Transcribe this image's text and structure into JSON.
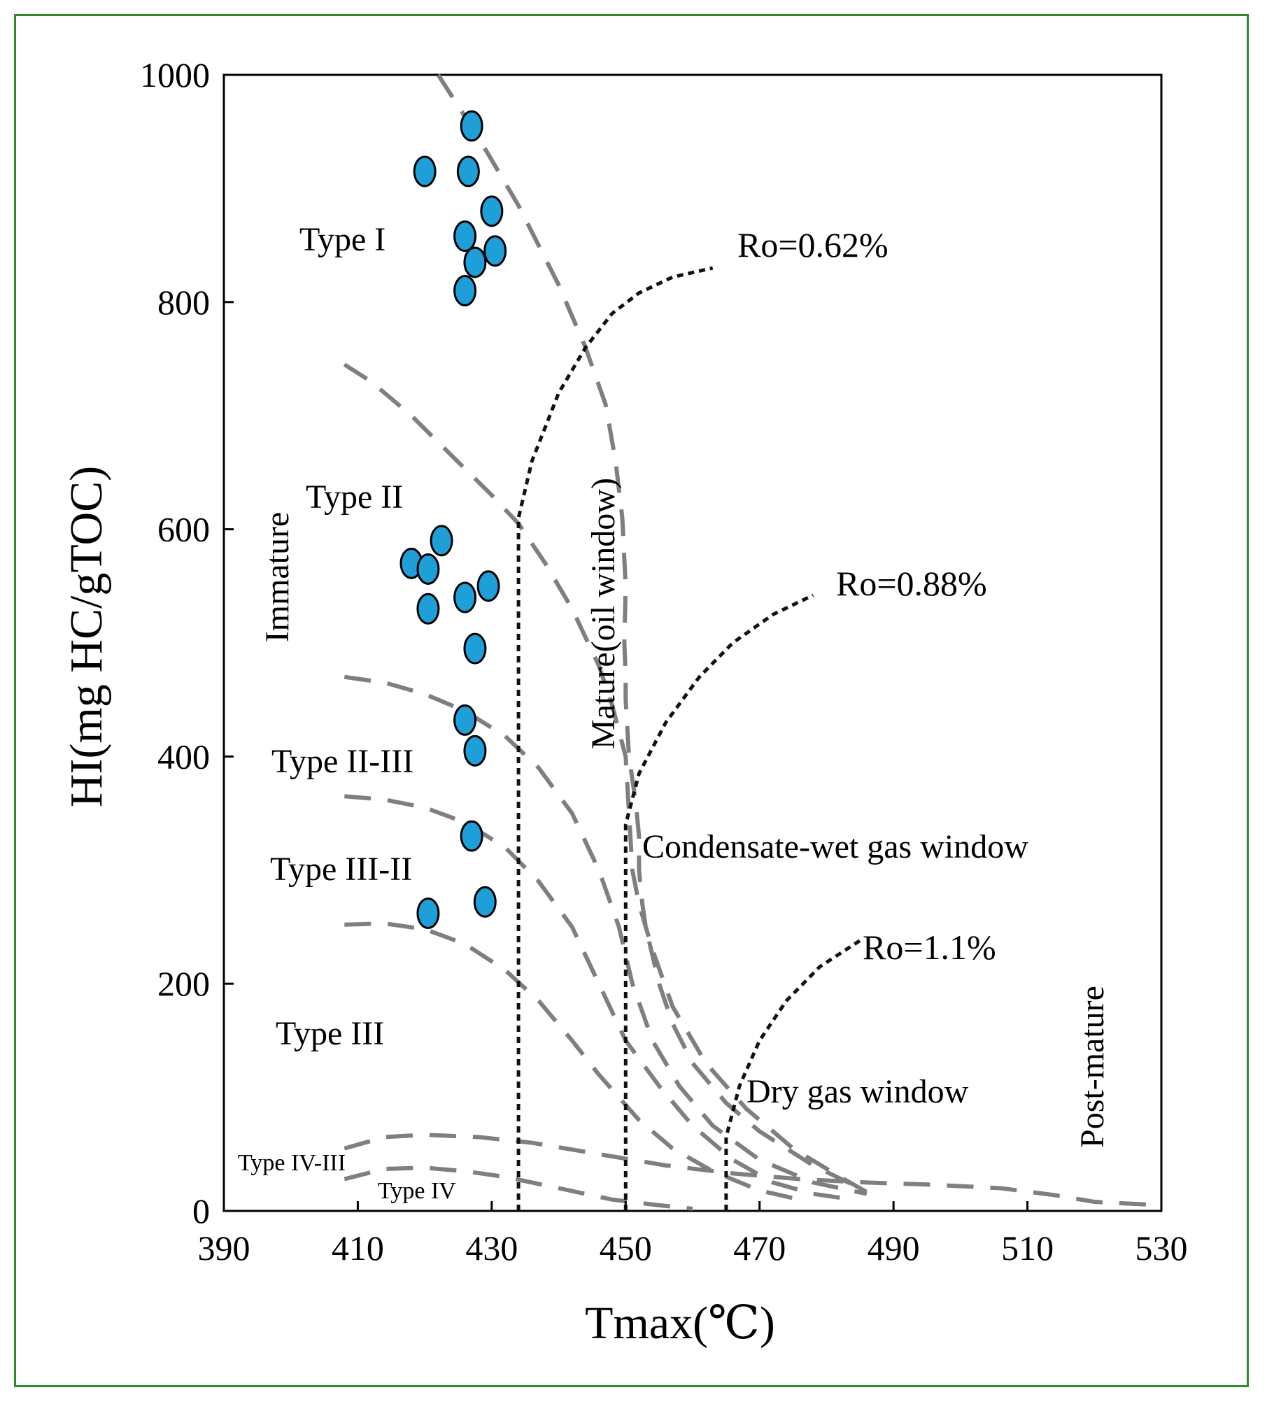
{
  "chart_data": {
    "type": "scatter",
    "title": "",
    "xlabel": "Tmax(℃)",
    "ylabel": "HI(mg HC/gTOC)",
    "xlim": [
      390,
      530
    ],
    "ylim": [
      0,
      1000
    ],
    "xticks": [
      390,
      410,
      430,
      450,
      470,
      490,
      510,
      530
    ],
    "yticks": [
      0,
      200,
      400,
      600,
      800,
      1000
    ],
    "grid": false,
    "marker_color": "#1e9fd8",
    "points": [
      {
        "x": 427,
        "y": 955
      },
      {
        "x": 420,
        "y": 915
      },
      {
        "x": 426.5,
        "y": 915
      },
      {
        "x": 430,
        "y": 880
      },
      {
        "x": 426,
        "y": 858
      },
      {
        "x": 430.5,
        "y": 845
      },
      {
        "x": 427.5,
        "y": 835
      },
      {
        "x": 426,
        "y": 810
      },
      {
        "x": 422.5,
        "y": 590
      },
      {
        "x": 418,
        "y": 570
      },
      {
        "x": 420.5,
        "y": 565
      },
      {
        "x": 429.5,
        "y": 550
      },
      {
        "x": 426,
        "y": 540
      },
      {
        "x": 420.5,
        "y": 530
      },
      {
        "x": 427.5,
        "y": 495
      },
      {
        "x": 426,
        "y": 432
      },
      {
        "x": 427.5,
        "y": 405
      },
      {
        "x": 427,
        "y": 330
      },
      {
        "x": 429,
        "y": 272
      },
      {
        "x": 420.5,
        "y": 262
      }
    ],
    "type_boundaries": [
      {
        "name": "I-II",
        "points": [
          [
            422,
            1000
          ],
          [
            428,
            945
          ],
          [
            434,
            885
          ],
          [
            440,
            815
          ],
          [
            444,
            760
          ],
          [
            447,
            710
          ],
          [
            448.5,
            660
          ],
          [
            449.5,
            610
          ],
          [
            450,
            550
          ],
          [
            449.8,
            500
          ],
          [
            450,
            470
          ],
          [
            450,
            450
          ],
          [
            450.5,
            400
          ],
          [
            451.5,
            360
          ],
          [
            452,
            330
          ],
          [
            452,
            300
          ],
          [
            452.5,
            270
          ],
          [
            453,
            250
          ],
          [
            455,
            200
          ],
          [
            457,
            165
          ],
          [
            460,
            130
          ],
          [
            465,
            95
          ],
          [
            470,
            70
          ],
          [
            478,
            40
          ],
          [
            485,
            20
          ]
        ]
      },
      {
        "name": "II-II/III",
        "points": [
          [
            408,
            745
          ],
          [
            412,
            730
          ],
          [
            418,
            700
          ],
          [
            424,
            665
          ],
          [
            430,
            630
          ],
          [
            434,
            605
          ],
          [
            438,
            570
          ],
          [
            442,
            530
          ],
          [
            446,
            480
          ],
          [
            448,
            445
          ],
          [
            450,
            400
          ],
          [
            450.5,
            350
          ],
          [
            451,
            300
          ],
          [
            452,
            270
          ],
          [
            454,
            230
          ],
          [
            457,
            180
          ],
          [
            462,
            130
          ],
          [
            468,
            90
          ],
          [
            475,
            55
          ],
          [
            482,
            30
          ],
          [
            488,
            10
          ]
        ]
      },
      {
        "name": "II/III-III/II",
        "points": [
          [
            408,
            470
          ],
          [
            414,
            465
          ],
          [
            420,
            455
          ],
          [
            426,
            440
          ],
          [
            432,
            418
          ],
          [
            437,
            390
          ],
          [
            442,
            350
          ],
          [
            446,
            300
          ],
          [
            449,
            250
          ],
          [
            451,
            200
          ],
          [
            454,
            150
          ],
          [
            458,
            110
          ],
          [
            463,
            75
          ],
          [
            470,
            45
          ],
          [
            478,
            25
          ],
          [
            486,
            15
          ]
        ]
      },
      {
        "name": "III/II-III",
        "points": [
          [
            408,
            365
          ],
          [
            414,
            362
          ],
          [
            420,
            355
          ],
          [
            426,
            342
          ],
          [
            432,
            320
          ],
          [
            437,
            290
          ],
          [
            442,
            250
          ],
          [
            446,
            200
          ],
          [
            450,
            150
          ],
          [
            455,
            110
          ],
          [
            460,
            75
          ],
          [
            466,
            45
          ],
          [
            472,
            25
          ],
          [
            478,
            15
          ],
          [
            484,
            10
          ]
        ]
      },
      {
        "name": "III-IV/III",
        "points": [
          [
            408,
            252
          ],
          [
            414,
            253
          ],
          [
            420,
            248
          ],
          [
            426,
            235
          ],
          [
            432,
            212
          ],
          [
            437,
            185
          ],
          [
            442,
            150
          ],
          [
            446,
            120
          ],
          [
            449,
            100
          ],
          [
            452,
            80
          ],
          [
            457,
            55
          ],
          [
            463,
            35
          ],
          [
            470,
            18
          ],
          [
            476,
            10
          ]
        ]
      },
      {
        "name": "IV/III upper",
        "points": [
          [
            408,
            55
          ],
          [
            414,
            65
          ],
          [
            420,
            67
          ],
          [
            428,
            65
          ],
          [
            436,
            60
          ],
          [
            446,
            50
          ],
          [
            456,
            40
          ],
          [
            466,
            33
          ],
          [
            476,
            28
          ],
          [
            486,
            25
          ],
          [
            496,
            23
          ],
          [
            506,
            20
          ],
          [
            514,
            14
          ],
          [
            520,
            8
          ],
          [
            530,
            5
          ]
        ]
      },
      {
        "name": "IV/III-IV",
        "points": [
          [
            408,
            28
          ],
          [
            414,
            37
          ],
          [
            420,
            38
          ],
          [
            426,
            35
          ],
          [
            432,
            30
          ],
          [
            440,
            20
          ],
          [
            448,
            10
          ],
          [
            455,
            5
          ],
          [
            460,
            2
          ]
        ]
      }
    ],
    "maturity_boundaries": [
      {
        "name": "Ro=0.62%",
        "label": "Ro=0.62%",
        "points": [
          [
            434,
            0
          ],
          [
            434,
            610
          ],
          [
            436,
            660
          ],
          [
            440,
            720
          ],
          [
            444,
            760
          ],
          [
            448,
            790
          ],
          [
            452,
            808
          ],
          [
            457,
            822
          ],
          [
            463,
            830
          ]
        ]
      },
      {
        "name": "Ro=0.88%",
        "label": "Ro=0.88%",
        "points": [
          [
            450,
            0
          ],
          [
            450,
            340
          ],
          [
            452,
            385
          ],
          [
            456,
            430
          ],
          [
            461,
            470
          ],
          [
            466,
            500
          ],
          [
            472,
            525
          ],
          [
            478,
            542
          ]
        ]
      },
      {
        "name": "Ro=1.1%",
        "label": "Ro=1.1%",
        "points": [
          [
            465,
            0
          ],
          [
            465,
            65
          ],
          [
            467,
            110
          ],
          [
            470,
            150
          ],
          [
            474,
            185
          ],
          [
            479,
            215
          ],
          [
            485,
            238
          ]
        ]
      }
    ],
    "annotations": {
      "type_i": "Type I",
      "type_ii": "Type II",
      "type_ii_iii": "Type II-III",
      "type_iii_ii": "Type III-II",
      "type_iii": "Type III",
      "type_iv_iii": "Type IV-III",
      "type_iv": "Type IV",
      "immature": "Immature",
      "mature": "Mature(oil window)",
      "condensate": "Condensate-wet gas window",
      "dry_gas": "Dry gas window",
      "post_mature": "Post-mature"
    }
  }
}
